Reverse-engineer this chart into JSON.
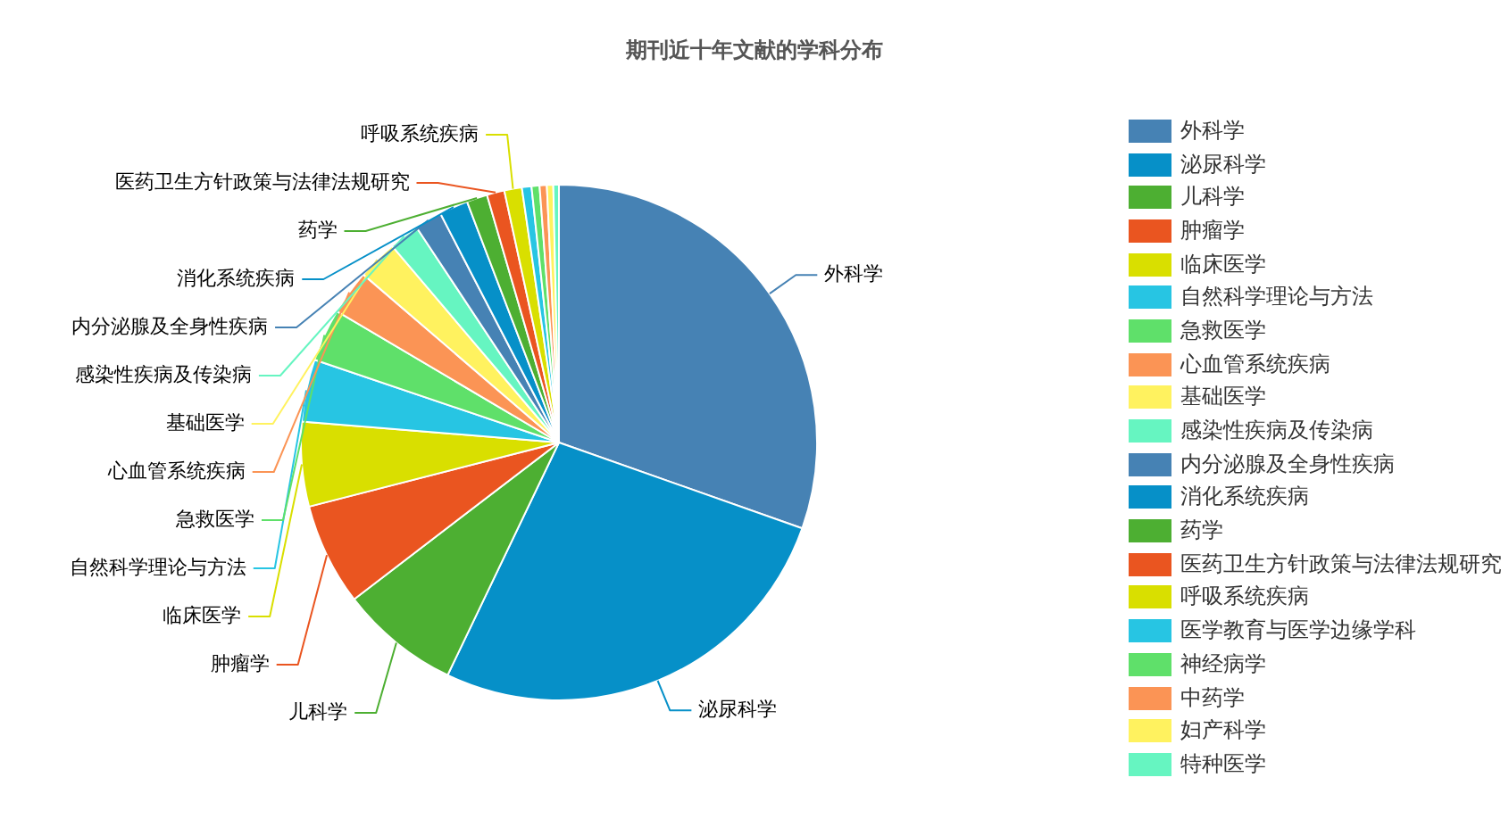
{
  "chart_data": {
    "type": "pie",
    "title": "期刊近十年文献的学科分布",
    "categories": [
      "外科学",
      "泌尿科学",
      "儿科学",
      "肿瘤学",
      "临床医学",
      "自然科学理论与方法",
      "急救医学",
      "心血管系统疾病",
      "基础医学",
      "感染性疾病及传染病",
      "内分泌腺及全身性疾病",
      "消化系统疾病",
      "药学",
      "医药卫生方针政策与法律法规研究",
      "呼吸系统疾病",
      "医学教育与医学边缘学科",
      "神经病学",
      "中药学",
      "妇产科学",
      "特种医学"
    ],
    "values": [
      30.4,
      26.7,
      7.5,
      6.4,
      5.3,
      3.9,
      3.3,
      2.8,
      2.5,
      1.9,
      1.7,
      1.8,
      1.3,
      1.1,
      1.1,
      0.6,
      0.5,
      0.45,
      0.4,
      0.35
    ],
    "colors": [
      "#4682b4",
      "#0690c8",
      "#4daf32",
      "#ea5520",
      "#d9df00",
      "#27c5e3",
      "#5fe06a",
      "#fb9455",
      "#fff25f",
      "#66f5c1",
      "#4682b4",
      "#0690c8",
      "#4daf32",
      "#ea5520",
      "#d9df00",
      "#27c5e3",
      "#5fe06a",
      "#fb9455",
      "#fff25f",
      "#66f5c1"
    ],
    "legend": "right"
  }
}
